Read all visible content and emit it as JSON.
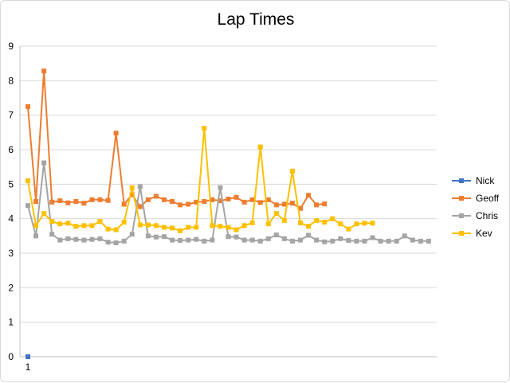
{
  "chart_data": {
    "type": "line",
    "title": "Lap Times",
    "xlabel": "",
    "ylabel": "",
    "ylim": [
      0,
      9
    ],
    "y_ticks": [
      "0",
      "1",
      "2",
      "3",
      "4",
      "5",
      "6",
      "7",
      "8",
      "9"
    ],
    "x_tick_labels": [
      "1"
    ],
    "grid": "horizontal",
    "legend_position": "right",
    "series": [
      {
        "name": "Nick",
        "color": "#4472c4",
        "values": [
          0.0
        ]
      },
      {
        "name": "Geoff",
        "color": "#ed7d31",
        "values": [
          7.25,
          4.5,
          8.28,
          4.48,
          4.52,
          4.46,
          4.5,
          4.45,
          4.55,
          4.55,
          4.53,
          6.48,
          4.42,
          4.7,
          4.35,
          4.55,
          4.65,
          4.55,
          4.5,
          4.4,
          4.42,
          4.48,
          4.5,
          4.55,
          4.52,
          4.57,
          4.62,
          4.48,
          4.55,
          4.47,
          4.55,
          4.4,
          4.42,
          4.45,
          4.3,
          4.68,
          4.4,
          4.43
        ]
      },
      {
        "name": "Chris",
        "color": "#a5a5a5",
        "values": [
          4.38,
          3.5,
          5.62,
          3.55,
          3.38,
          3.42,
          3.4,
          3.38,
          3.4,
          3.42,
          3.32,
          3.3,
          3.35,
          3.55,
          4.93,
          3.5,
          3.47,
          3.48,
          3.38,
          3.37,
          3.38,
          3.4,
          3.35,
          3.38,
          4.9,
          3.48,
          3.47,
          3.38,
          3.38,
          3.35,
          3.42,
          3.53,
          3.42,
          3.35,
          3.38,
          3.52,
          3.38,
          3.33,
          3.35,
          3.42,
          3.37,
          3.35,
          3.35,
          3.45,
          3.35,
          3.35,
          3.35,
          3.5,
          3.38,
          3.35,
          3.35
        ]
      },
      {
        "name": "Kev",
        "color": "#ffc000",
        "values": [
          5.1,
          3.8,
          4.15,
          3.92,
          3.85,
          3.87,
          3.78,
          3.8,
          3.8,
          3.92,
          3.7,
          3.68,
          3.9,
          4.9,
          3.82,
          3.82,
          3.8,
          3.75,
          3.73,
          3.65,
          3.75,
          3.75,
          6.62,
          3.8,
          3.78,
          3.75,
          3.68,
          3.8,
          3.88,
          6.08,
          3.85,
          4.15,
          3.95,
          5.38,
          3.88,
          3.78,
          3.95,
          3.9,
          4.0,
          3.85,
          3.7,
          3.85,
          3.87,
          3.87
        ]
      }
    ]
  }
}
